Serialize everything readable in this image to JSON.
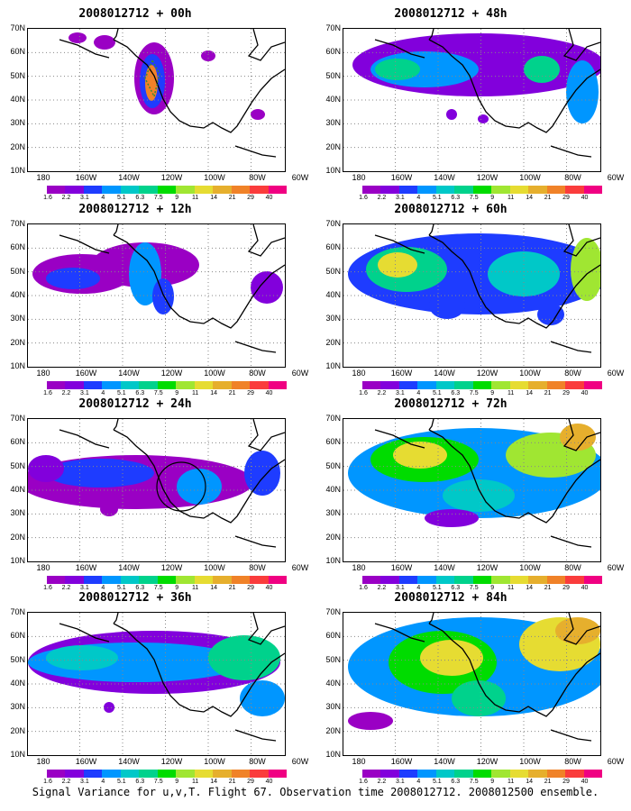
{
  "caption": "Signal Variance for u,v,T. Flight 67. Observation time 2008012712. 2008012500 ensemble.",
  "axes": {
    "y_labels": [
      "70N",
      "60N",
      "50N",
      "40N",
      "30N",
      "20N",
      "10N"
    ],
    "x_labels": [
      "180",
      "160W",
      "140W",
      "120W",
      "100W",
      "80W",
      "60W"
    ]
  },
  "colorbar": {
    "labels": [
      "1.6",
      "2.2",
      "3.1",
      "4",
      "5.1",
      "6.3",
      "7.5",
      "9",
      "11",
      "14",
      "21",
      "29",
      "40"
    ],
    "colors": [
      "#9a00c4",
      "#8200dc",
      "#1e3cff",
      "#0096ff",
      "#00c8c8",
      "#00d28c",
      "#00dc00",
      "#a0e632",
      "#e6dc32",
      "#e6af2d",
      "#f08228",
      "#fa3c3c",
      "#f00082"
    ]
  },
  "panels": [
    {
      "title": "2008012712 + 00h"
    },
    {
      "title": "2008012712 + 12h"
    },
    {
      "title": "2008012712 + 24h"
    },
    {
      "title": "2008012712 + 36h"
    },
    {
      "title": "2008012712 + 48h"
    },
    {
      "title": "2008012712 + 60h"
    },
    {
      "title": "2008012712 + 72h"
    },
    {
      "title": "2008012712 + 84h"
    }
  ]
}
